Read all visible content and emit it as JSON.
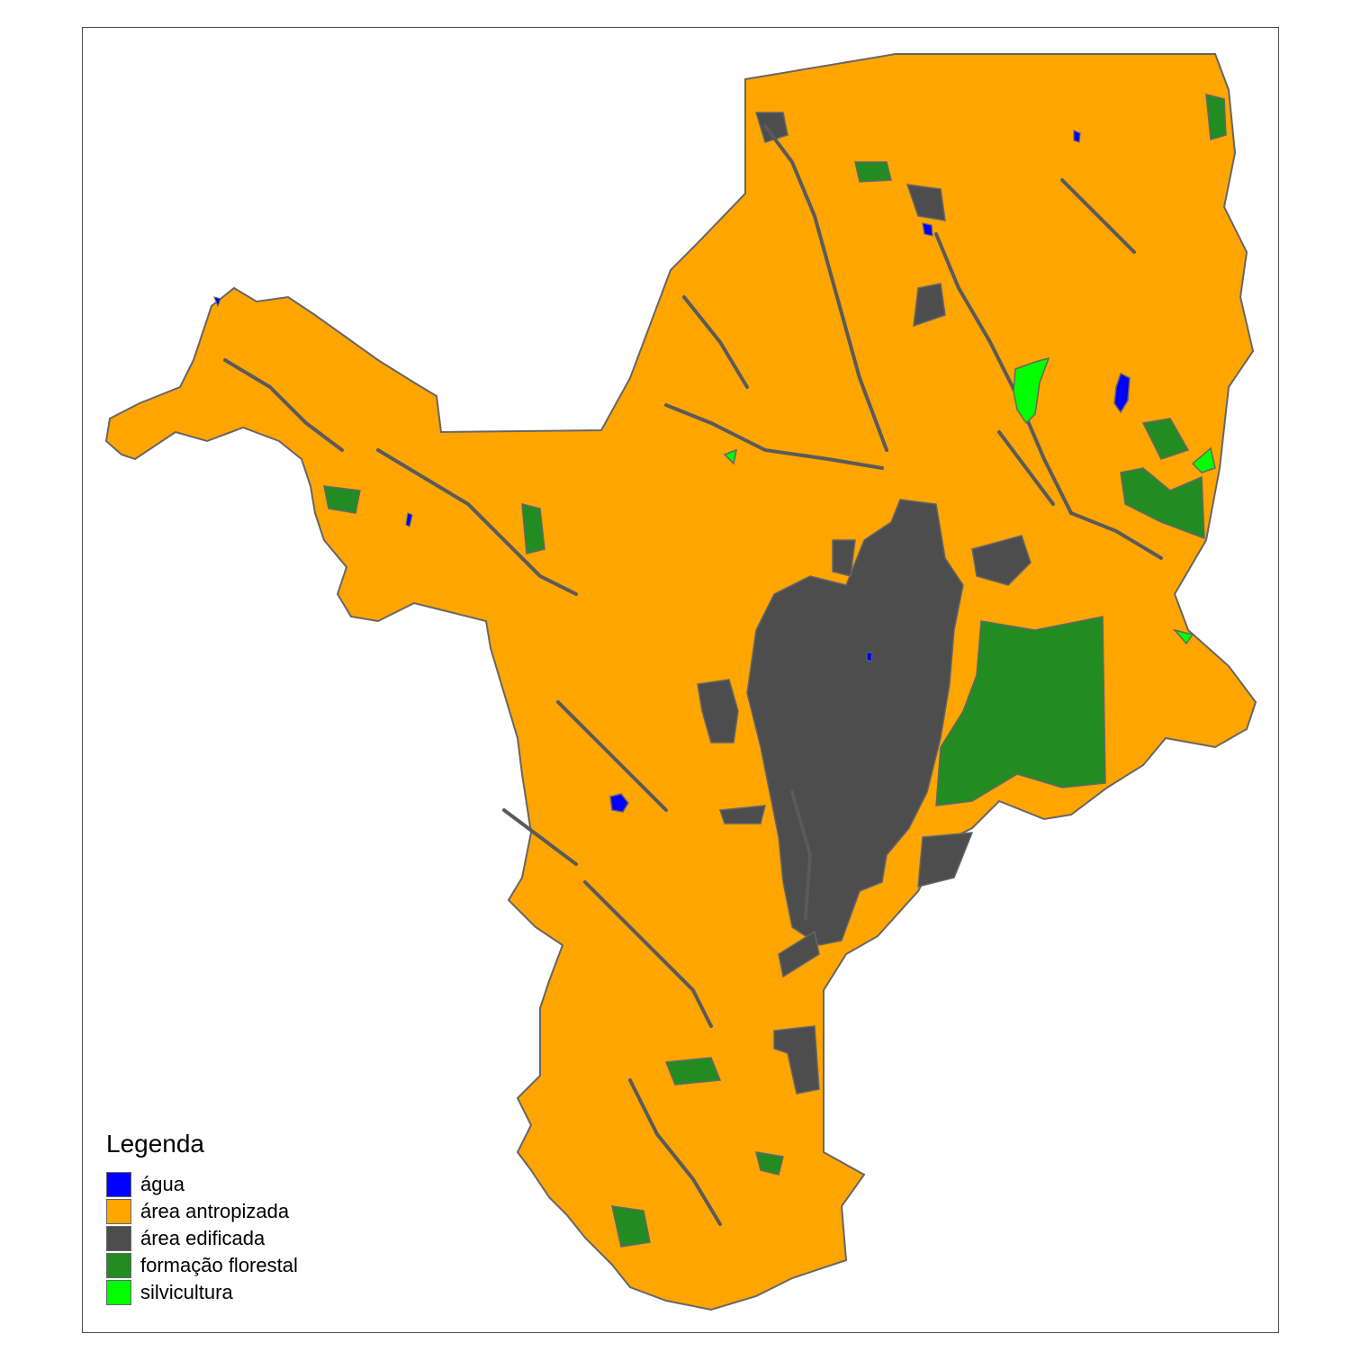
{
  "legend": {
    "title": "Legenda",
    "items": [
      {
        "key": "agua",
        "label": "água",
        "color": "#0000FF"
      },
      {
        "key": "antropizada",
        "label": "área antropizada",
        "color": "#FFA500"
      },
      {
        "key": "edificada",
        "label": "área edificada",
        "color": "#4D4D4D"
      },
      {
        "key": "florestal",
        "label": "formação florestal",
        "color": "#228B22"
      },
      {
        "key": "silvicultura",
        "label": "silvicultura",
        "color": "#00FF00"
      }
    ]
  },
  "colors": {
    "border": "#666666",
    "frame": "#4D4D4D"
  }
}
